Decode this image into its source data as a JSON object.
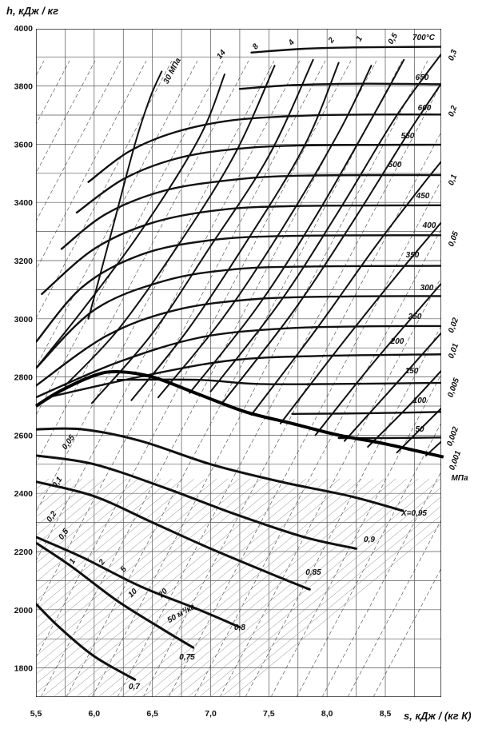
{
  "chart_data": {
    "type": "line",
    "ylabel": "h,  кДж / кг",
    "xlabel": "s,  кДж / (кг К)",
    "xlim": [
      5.5,
      9.0
    ],
    "ylim": [
      1700,
      4000
    ],
    "x_ticks": [
      "5,5",
      "6,0",
      "6,5",
      "7,0",
      "7,5",
      "8,0",
      "8,5"
    ],
    "x_tick_values": [
      5.5,
      6.0,
      6.5,
      7.0,
      7.5,
      8.0,
      8.5
    ],
    "y_ticks": [
      "1800",
      "2000",
      "2200",
      "2400",
      "2600",
      "2800",
      "3000",
      "3200",
      "3400",
      "3600",
      "3800",
      "4000"
    ],
    "y_tick_values": [
      1800,
      2000,
      2200,
      2400,
      2600,
      2800,
      3000,
      3200,
      3400,
      3600,
      3800,
      4000
    ],
    "grid": true,
    "isotherms": [
      {
        "label": "700°C",
        "points": [
          [
            7.35,
            3915
          ],
          [
            7.8,
            3928
          ],
          [
            8.3,
            3933
          ],
          [
            9.0,
            3935
          ]
        ]
      },
      {
        "label": "650",
        "points": [
          [
            7.25,
            3790
          ],
          [
            7.7,
            3803
          ],
          [
            8.3,
            3808
          ],
          [
            9.0,
            3806
          ]
        ]
      },
      {
        "label": "600",
        "points": [
          [
            5.95,
            3470
          ],
          [
            6.3,
            3575
          ],
          [
            6.7,
            3642
          ],
          [
            7.2,
            3683
          ],
          [
            7.8,
            3698
          ],
          [
            8.4,
            3702
          ],
          [
            9.0,
            3702
          ]
        ]
      },
      {
        "label": "550",
        "points": [
          [
            5.85,
            3365
          ],
          [
            6.25,
            3480
          ],
          [
            6.7,
            3550
          ],
          [
            7.2,
            3583
          ],
          [
            7.8,
            3596
          ],
          [
            9.0,
            3598
          ]
        ]
      },
      {
        "label": "500",
        "points": [
          [
            5.72,
            3240
          ],
          [
            6.1,
            3360
          ],
          [
            6.6,
            3440
          ],
          [
            7.2,
            3478
          ],
          [
            7.8,
            3492
          ],
          [
            9.0,
            3494
          ]
        ]
      },
      {
        "label": "450",
        "points": [
          [
            5.55,
            3085
          ],
          [
            6.0,
            3240
          ],
          [
            6.5,
            3330
          ],
          [
            7.1,
            3375
          ],
          [
            7.8,
            3388
          ],
          [
            9.0,
            3390
          ]
        ]
      },
      {
        "label": "400",
        "points": [
          [
            5.5,
            2920
          ],
          [
            5.9,
            3110
          ],
          [
            6.4,
            3220
          ],
          [
            7.0,
            3270
          ],
          [
            7.7,
            3285
          ],
          [
            9.0,
            3287
          ]
        ]
      },
      {
        "label": "350",
        "points": [
          [
            5.5,
            2830
          ],
          [
            6.0,
            3030
          ],
          [
            6.6,
            3130
          ],
          [
            7.2,
            3170
          ],
          [
            7.9,
            3180
          ],
          [
            9.0,
            3182
          ]
        ]
      },
      {
        "label": "300",
        "points": [
          [
            5.5,
            2770
          ],
          [
            6.1,
            2940
          ],
          [
            6.7,
            3030
          ],
          [
            7.4,
            3068
          ],
          [
            8.2,
            3077
          ],
          [
            9.0,
            3078
          ]
        ]
      },
      {
        "label": "250",
        "points": [
          [
            5.5,
            2730
          ],
          [
            6.2,
            2850
          ],
          [
            6.9,
            2935
          ],
          [
            7.6,
            2966
          ],
          [
            8.3,
            2974
          ],
          [
            9.0,
            2975
          ]
        ]
      },
      {
        "label": "200",
        "points": [
          [
            5.6,
            2730
          ],
          [
            6.5,
            2810
          ],
          [
            7.2,
            2858
          ],
          [
            7.9,
            2872
          ],
          [
            9.0,
            2878
          ]
        ]
      },
      {
        "label": "150",
        "points": [
          [
            6.2,
            2790
          ],
          [
            6.9,
            2790
          ],
          [
            7.4,
            2776
          ],
          [
            8.1,
            2776
          ],
          [
            9.0,
            2780
          ]
        ]
      },
      {
        "label": "100",
        "points": [
          [
            7.7,
            2673
          ],
          [
            8.3,
            2675
          ],
          [
            9.0,
            2680
          ]
        ]
      },
      {
        "label": "50",
        "points": [
          [
            8.1,
            2590
          ],
          [
            8.5,
            2590
          ],
          [
            9.0,
            2592
          ]
        ]
      }
    ],
    "isobars": [
      {
        "label": "30 МПа",
        "points": [
          [
            5.95,
            3000
          ],
          [
            6.15,
            3300
          ],
          [
            6.35,
            3600
          ],
          [
            6.48,
            3760
          ],
          [
            6.58,
            3850
          ]
        ]
      },
      {
        "label": "14",
        "points": [
          [
            5.5,
            2830
          ],
          [
            5.9,
            3030
          ],
          [
            6.4,
            3300
          ],
          [
            6.9,
            3620
          ],
          [
            7.12,
            3840
          ]
        ]
      },
      {
        "label": "8",
        "points": [
          [
            5.75,
            2770
          ],
          [
            6.2,
            2960
          ],
          [
            6.7,
            3240
          ],
          [
            7.2,
            3560
          ],
          [
            7.55,
            3870
          ]
        ]
      },
      {
        "label": "4",
        "points": [
          [
            5.98,
            2710
          ],
          [
            6.5,
            2950
          ],
          [
            7.0,
            3250
          ],
          [
            7.5,
            3560
          ],
          [
            7.88,
            3890
          ]
        ]
      },
      {
        "label": "2",
        "points": [
          [
            6.32,
            2720
          ],
          [
            6.8,
            2960
          ],
          [
            7.3,
            3260
          ],
          [
            7.8,
            3590
          ],
          [
            8.1,
            3880
          ]
        ]
      },
      {
        "label": "1",
        "points": [
          [
            6.55,
            2730
          ],
          [
            7.1,
            3000
          ],
          [
            7.6,
            3300
          ],
          [
            8.1,
            3640
          ],
          [
            8.38,
            3870
          ]
        ]
      },
      {
        "label": "0,5",
        "points": [
          [
            6.82,
            2745
          ],
          [
            7.4,
            3040
          ],
          [
            7.9,
            3350
          ],
          [
            8.4,
            3700
          ],
          [
            8.66,
            3890
          ]
        ]
      },
      {
        "label": "0,3",
        "points": [
          [
            7.0,
            2750
          ],
          [
            7.6,
            3060
          ],
          [
            8.1,
            3370
          ],
          [
            8.6,
            3700
          ],
          [
            9.0,
            3920
          ]
        ]
      },
      {
        "label": "0,2",
        "points": [
          [
            7.1,
            2710
          ],
          [
            7.7,
            3020
          ],
          [
            8.2,
            3320
          ],
          [
            8.7,
            3640
          ],
          [
            9.0,
            3820
          ]
        ]
      },
      {
        "label": "0,1",
        "points": [
          [
            7.35,
            2670
          ],
          [
            7.9,
            2960
          ],
          [
            8.4,
            3240
          ],
          [
            8.8,
            3450
          ],
          [
            9.0,
            3550
          ]
        ]
      },
      {
        "label": "0,05",
        "points": [
          [
            7.6,
            2640
          ],
          [
            8.1,
            2900
          ],
          [
            8.6,
            3150
          ],
          [
            9.0,
            3340
          ]
        ]
      },
      {
        "label": "0,02",
        "points": [
          [
            7.9,
            2600
          ],
          [
            8.4,
            2850
          ],
          [
            9.0,
            3130
          ]
        ]
      },
      {
        "label": "0,01",
        "points": [
          [
            8.15,
            2580
          ],
          [
            8.6,
            2780
          ],
          [
            9.0,
            2960
          ]
        ]
      },
      {
        "label": "0,005",
        "points": [
          [
            8.35,
            2560
          ],
          [
            8.7,
            2700
          ],
          [
            9.0,
            2830
          ]
        ]
      },
      {
        "label": "0,002",
        "points": [
          [
            8.6,
            2540
          ],
          [
            9.0,
            2700
          ]
        ]
      },
      {
        "label": "0,001 МПа",
        "points": [
          [
            8.85,
            2530
          ],
          [
            9.0,
            2585
          ]
        ]
      }
    ],
    "saturation_line": {
      "points": [
        [
          5.5,
          2700
        ],
        [
          5.7,
          2750
        ],
        [
          6.0,
          2805
        ],
        [
          6.2,
          2818
        ],
        [
          6.5,
          2800
        ],
        [
          6.9,
          2740
        ],
        [
          7.3,
          2680
        ],
        [
          7.7,
          2640
        ],
        [
          8.1,
          2600
        ],
        [
          8.5,
          2570
        ],
        [
          9.0,
          2525
        ]
      ]
    },
    "dryness_lines": [
      {
        "label": "X=0,95",
        "points": [
          [
            5.5,
            2620
          ],
          [
            5.9,
            2620
          ],
          [
            6.4,
            2580
          ],
          [
            7.0,
            2500
          ],
          [
            7.6,
            2440
          ],
          [
            8.2,
            2390
          ],
          [
            8.65,
            2340
          ]
        ]
      },
      {
        "label": "0,9",
        "points": [
          [
            5.5,
            2530
          ],
          [
            6.0,
            2500
          ],
          [
            6.6,
            2420
          ],
          [
            7.2,
            2330
          ],
          [
            7.8,
            2250
          ],
          [
            8.25,
            2210
          ]
        ]
      },
      {
        "label": "0,85",
        "points": [
          [
            5.5,
            2440
          ],
          [
            6.0,
            2390
          ],
          [
            6.5,
            2300
          ],
          [
            7.0,
            2210
          ],
          [
            7.6,
            2110
          ],
          [
            7.85,
            2070
          ]
        ]
      },
      {
        "label": "0,8",
        "points": [
          [
            5.5,
            2250
          ],
          [
            5.9,
            2180
          ],
          [
            6.4,
            2080
          ],
          [
            6.9,
            2000
          ],
          [
            7.25,
            1940
          ]
        ]
      },
      {
        "label": "0,75",
        "points": [
          [
            5.5,
            2230
          ],
          [
            5.8,
            2150
          ],
          [
            6.2,
            2030
          ],
          [
            6.6,
            1930
          ],
          [
            6.85,
            1870
          ]
        ]
      },
      {
        "label": "0,7",
        "points": [
          [
            5.5,
            2020
          ],
          [
            5.7,
            1940
          ],
          [
            6.0,
            1840
          ],
          [
            6.35,
            1760
          ]
        ]
      }
    ],
    "isochore_labels": [
      "0,05",
      "0,1",
      "0,2",
      "0,5",
      "1",
      "2",
      "5",
      "10",
      "20",
      "50 м³/кг"
    ],
    "scale_note_top": "700°C"
  }
}
